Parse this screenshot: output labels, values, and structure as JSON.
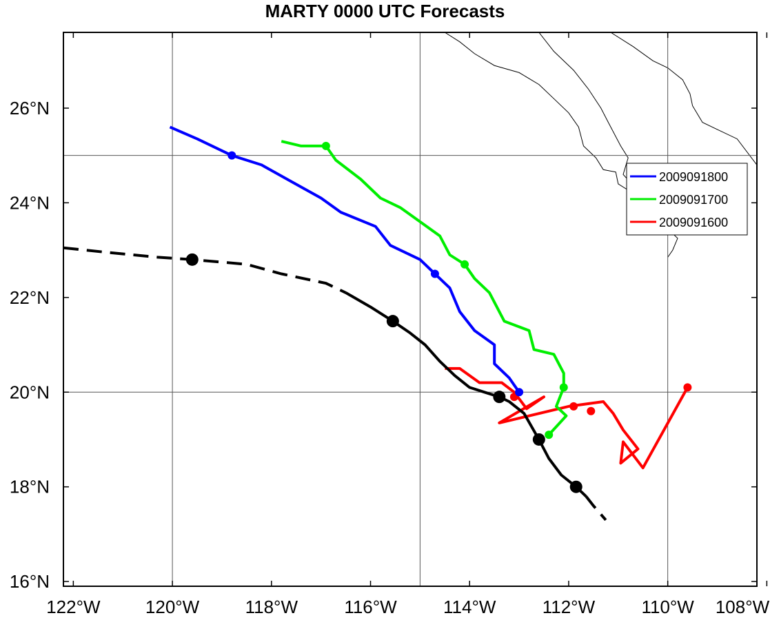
{
  "title": "MARTY 0000 UTC Forecasts",
  "axes": {
    "lon_ticks": [
      "122°W",
      "120°W",
      "118°W",
      "116°W",
      "114°W",
      "112°W",
      "110°W",
      "108°W"
    ],
    "lat_ticks": [
      "16°N",
      "18°N",
      "20°N",
      "22°N",
      "24°N",
      "26°N"
    ]
  },
  "legend": [
    {
      "label": "2009091800",
      "color": "#0000ff"
    },
    {
      "label": "2009091700",
      "color": "#00ee00"
    },
    {
      "label": "2009091600",
      "color": "#ff0000"
    }
  ],
  "chart_data": {
    "type": "map",
    "xlim": [
      -122.2,
      -108.2
    ],
    "ylim": [
      15.9,
      27.6
    ],
    "grid": true,
    "grid_lons": [
      -120,
      -115,
      -110
    ],
    "grid_lats": [
      20,
      25
    ],
    "legend_position": "right",
    "best_track": {
      "color": "#000000",
      "dashed_early": [
        [
          -122.2,
          23.05
        ],
        [
          -121.3,
          22.95
        ],
        [
          -120.3,
          22.85
        ],
        [
          -119.6,
          22.8
        ],
        [
          -118.5,
          22.7
        ],
        [
          -117.8,
          22.5
        ],
        [
          -116.9,
          22.3
        ],
        [
          -116.5,
          22.1
        ]
      ],
      "solid": [
        [
          -116.5,
          22.1
        ],
        [
          -116.0,
          21.8
        ],
        [
          -115.55,
          21.5
        ],
        [
          -115.2,
          21.25
        ],
        [
          -114.9,
          21.0
        ],
        [
          -114.6,
          20.65
        ],
        [
          -114.3,
          20.35
        ],
        [
          -114.0,
          20.1
        ],
        [
          -113.7,
          20.0
        ],
        [
          -113.4,
          19.9
        ],
        [
          -113.2,
          19.8
        ],
        [
          -112.9,
          19.55
        ],
        [
          -112.6,
          19.0
        ],
        [
          -112.4,
          18.6
        ],
        [
          -112.15,
          18.25
        ],
        [
          -111.85,
          18.0
        ],
        [
          -111.65,
          17.8
        ]
      ],
      "dashed_late": [
        [
          -111.65,
          17.8
        ],
        [
          -111.5,
          17.6
        ],
        [
          -111.25,
          17.3
        ]
      ],
      "markers": [
        [
          -119.6,
          22.8
        ],
        [
          -115.55,
          21.5
        ],
        [
          -113.4,
          19.9
        ],
        [
          -112.6,
          19.0
        ],
        [
          -111.85,
          18.0
        ]
      ]
    },
    "series": [
      {
        "name": "2009091800",
        "color": "#0000ff",
        "points": [
          [
            -120.05,
            25.6
          ],
          [
            -119.5,
            25.35
          ],
          [
            -118.8,
            25.0
          ],
          [
            -118.2,
            24.8
          ],
          [
            -117.6,
            24.45
          ],
          [
            -117.0,
            24.1
          ],
          [
            -116.6,
            23.8
          ],
          [
            -115.9,
            23.5
          ],
          [
            -115.6,
            23.1
          ],
          [
            -115.0,
            22.8
          ],
          [
            -114.7,
            22.5
          ],
          [
            -114.4,
            22.2
          ],
          [
            -114.2,
            21.7
          ],
          [
            -113.9,
            21.3
          ],
          [
            -113.5,
            21.0
          ],
          [
            -113.5,
            20.6
          ],
          [
            -113.2,
            20.3
          ],
          [
            -113.0,
            20.0
          ]
        ],
        "markers": [
          [
            -118.8,
            25.0
          ],
          [
            -114.7,
            22.5
          ],
          [
            -113.0,
            20.0
          ]
        ]
      },
      {
        "name": "2009091700",
        "color": "#00ee00",
        "points": [
          [
            -117.8,
            25.3
          ],
          [
            -117.4,
            25.2
          ],
          [
            -116.9,
            25.2
          ],
          [
            -116.7,
            24.9
          ],
          [
            -116.2,
            24.5
          ],
          [
            -115.8,
            24.1
          ],
          [
            -115.4,
            23.9
          ],
          [
            -115.0,
            23.6
          ],
          [
            -114.6,
            23.3
          ],
          [
            -114.4,
            22.9
          ],
          [
            -114.1,
            22.7
          ],
          [
            -113.9,
            22.4
          ],
          [
            -113.6,
            22.1
          ],
          [
            -113.3,
            21.5
          ],
          [
            -112.8,
            21.3
          ],
          [
            -112.7,
            20.9
          ],
          [
            -112.3,
            20.8
          ],
          [
            -112.1,
            20.4
          ],
          [
            -112.1,
            20.1
          ],
          [
            -112.25,
            19.7
          ],
          [
            -112.05,
            19.5
          ],
          [
            -112.4,
            19.1
          ]
        ],
        "markers": [
          [
            -116.9,
            25.2
          ],
          [
            -114.1,
            22.7
          ],
          [
            -112.1,
            20.1
          ],
          [
            -112.4,
            19.1
          ]
        ]
      },
      {
        "name": "2009091600",
        "color": "#ff0000",
        "points": [
          [
            -114.5,
            20.5
          ],
          [
            -114.2,
            20.5
          ],
          [
            -113.8,
            20.2
          ],
          [
            -113.35,
            20.2
          ],
          [
            -113.1,
            20.0
          ],
          [
            -112.85,
            19.65
          ],
          [
            -112.5,
            19.9
          ],
          [
            -113.4,
            19.35
          ],
          [
            -112.0,
            19.7
          ],
          [
            -111.3,
            19.8
          ],
          [
            -111.1,
            19.55
          ],
          [
            -110.9,
            19.2
          ],
          [
            -110.6,
            18.8
          ],
          [
            -110.95,
            18.5
          ],
          [
            -110.9,
            18.95
          ],
          [
            -110.5,
            18.4
          ],
          [
            -109.6,
            20.1
          ]
        ],
        "markers": [
          [
            -113.1,
            19.9
          ],
          [
            -111.9,
            19.7
          ],
          [
            -111.55,
            19.6
          ],
          [
            -109.6,
            20.1
          ]
        ]
      }
    ],
    "coastlines": [
      [
        [
          -114.5,
          27.6
        ],
        [
          -114.2,
          27.4
        ],
        [
          -113.9,
          27.15
        ],
        [
          -113.5,
          26.9
        ],
        [
          -113.0,
          26.75
        ],
        [
          -112.6,
          26.5
        ],
        [
          -112.3,
          26.2
        ],
        [
          -112.0,
          25.9
        ],
        [
          -111.8,
          25.6
        ],
        [
          -111.7,
          25.2
        ],
        [
          -111.45,
          24.95
        ],
        [
          -111.3,
          24.7
        ],
        [
          -111.05,
          24.65
        ],
        [
          -111.0,
          24.4
        ],
        [
          -110.7,
          24.2
        ],
        [
          -110.5,
          23.9
        ],
        [
          -110.1,
          23.55
        ],
        [
          -109.8,
          23.25
        ],
        [
          -109.9,
          23.0
        ],
        [
          -110.0,
          22.85
        ]
      ],
      [
        [
          -112.6,
          27.6
        ],
        [
          -112.3,
          27.2
        ],
        [
          -111.9,
          26.8
        ],
        [
          -111.6,
          26.4
        ],
        [
          -111.35,
          26.0
        ],
        [
          -111.2,
          25.7
        ],
        [
          -110.95,
          25.2
        ],
        [
          -110.8,
          24.95
        ],
        [
          -110.9,
          24.6
        ],
        [
          -110.6,
          24.25
        ],
        [
          -110.1,
          24.2
        ],
        [
          -109.7,
          23.5
        ]
      ],
      [
        [
          -111.15,
          27.6
        ],
        [
          -110.7,
          27.3
        ],
        [
          -110.3,
          27.0
        ],
        [
          -110.0,
          26.85
        ],
        [
          -109.7,
          26.6
        ],
        [
          -109.55,
          26.3
        ],
        [
          -109.5,
          26.05
        ],
        [
          -109.3,
          25.7
        ],
        [
          -109.0,
          25.55
        ],
        [
          -108.6,
          25.35
        ],
        [
          -108.2,
          24.8
        ]
      ]
    ]
  }
}
